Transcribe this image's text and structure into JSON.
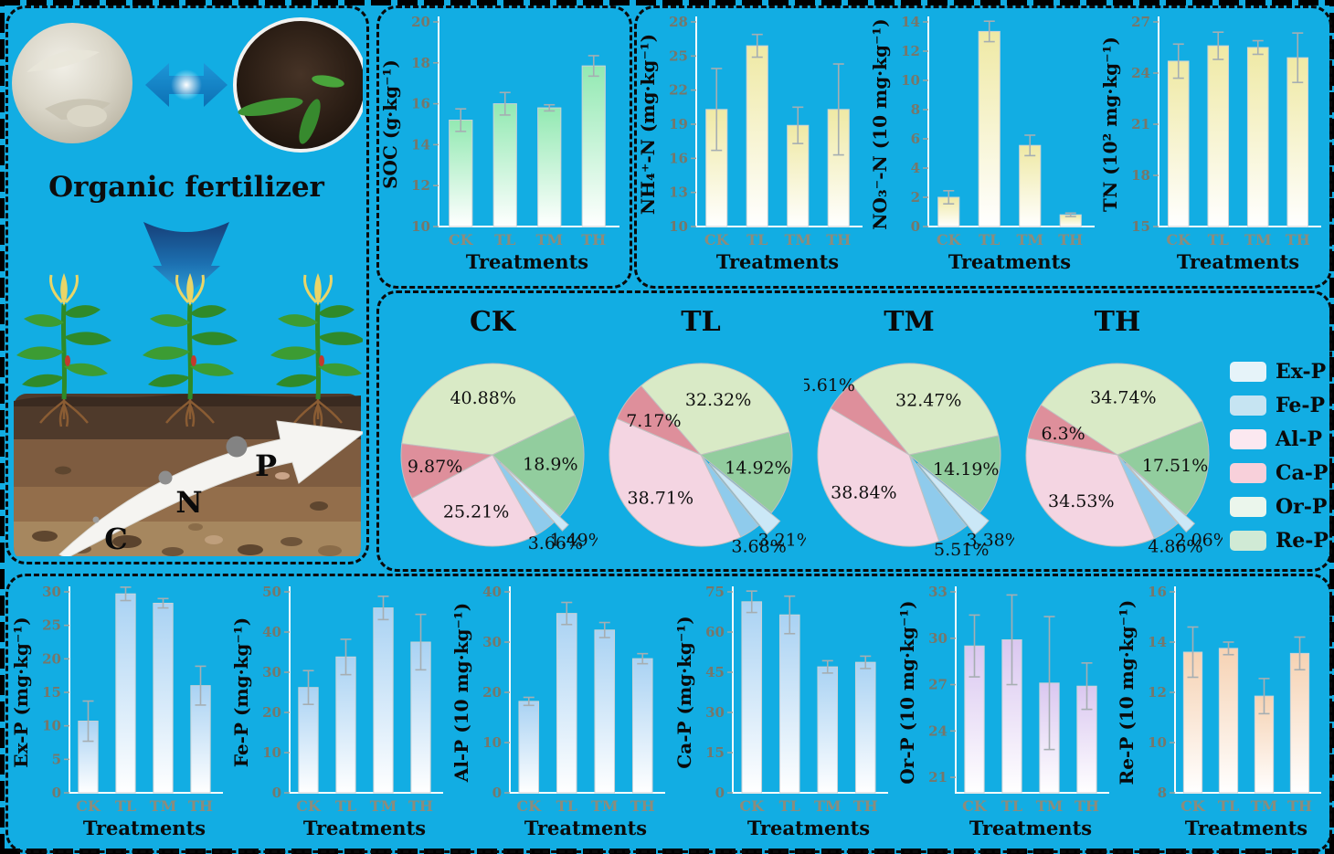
{
  "page": {
    "background": "#12ADE3",
    "border_color": "#000000"
  },
  "illustration": {
    "title": "Organic fertilizer",
    "photo_left": "fertilizer-powder-photo",
    "photo_right": "dark-soil-with-seedlings-photo",
    "nutrient_labels": [
      "C",
      "N",
      "P"
    ]
  },
  "treatments": [
    "CK",
    "TL",
    "TM",
    "TH"
  ],
  "pie_legend": [
    {
      "label": "Ex-P",
      "color": "#E6F3F9"
    },
    {
      "label": "Fe-P",
      "color": "#C6E4F2"
    },
    {
      "label": "Al-P",
      "color": "#FBE8F0"
    },
    {
      "label": "Ca-P",
      "color": "#F8D0DA"
    },
    {
      "label": "Or-P",
      "color": "#EBF6EC"
    },
    {
      "label": "Re-P",
      "color": "#D0EAD5"
    }
  ],
  "chart_data": [
    {
      "type": "bar",
      "name": "soc",
      "ylabel": "SOC (g·kg⁻¹)",
      "xlabel": "Treatments",
      "categories": [
        "CK",
        "TL",
        "TM",
        "TH"
      ],
      "values": [
        15.2,
        16.0,
        15.8,
        17.85
      ],
      "errors": [
        0.55,
        0.55,
        0.15,
        0.5
      ],
      "ylim": [
        10,
        20
      ],
      "yticks": [
        10,
        12,
        14,
        16,
        18,
        20
      ],
      "bar_top_color": "#92E9B2"
    },
    {
      "type": "bar",
      "name": "nh4",
      "ylabel": "NH₄⁺-N (mg·kg⁻¹)",
      "xlabel": "Treatments",
      "categories": [
        "CK",
        "TL",
        "TM",
        "TH"
      ],
      "values": [
        20.3,
        25.9,
        18.9,
        20.3
      ],
      "errors": [
        3.6,
        1.0,
        1.6,
        4.0
      ],
      "ylim": [
        10,
        28
      ],
      "yticks": [
        10,
        13,
        16,
        19,
        22,
        25,
        28
      ],
      "bar_top_color": "#EFE9A4"
    },
    {
      "type": "bar",
      "name": "no3",
      "ylabel": "NO₃⁻-N (10 mg·kg⁻¹)",
      "xlabel": "Treatments",
      "categories": [
        "CK",
        "TL",
        "TM",
        "TH"
      ],
      "values": [
        2.0,
        13.35,
        5.55,
        0.8
      ],
      "errors": [
        0.45,
        0.7,
        0.7,
        0.12
      ],
      "ylim": [
        0,
        14
      ],
      "yticks": [
        0,
        2,
        4,
        6,
        8,
        10,
        12,
        14
      ],
      "bar_top_color": "#EFE9A4"
    },
    {
      "type": "bar",
      "name": "tn",
      "ylabel": "TN (10² mg·kg⁻¹)",
      "xlabel": "Treatments",
      "categories": [
        "CK",
        "TL",
        "TM",
        "TH"
      ],
      "values": [
        24.7,
        25.6,
        25.5,
        24.9
      ],
      "errors": [
        1.0,
        0.8,
        0.4,
        1.45
      ],
      "ylim": [
        15,
        27
      ],
      "yticks": [
        15,
        18,
        21,
        24,
        27
      ],
      "bar_top_color": "#EFE9A4"
    },
    {
      "type": "bar",
      "name": "exp",
      "ylabel": "Ex-P (mg·kg⁻¹)",
      "xlabel": "Treatments",
      "categories": [
        "CK",
        "TL",
        "TM",
        "TH"
      ],
      "values": [
        10.7,
        29.7,
        28.3,
        16.0
      ],
      "errors": [
        3.0,
        1.0,
        0.7,
        2.9
      ],
      "ylim": [
        0,
        30
      ],
      "yticks": [
        0,
        5,
        10,
        15,
        20,
        25,
        30
      ],
      "bar_top_color": "#A9D2F3"
    },
    {
      "type": "bar",
      "name": "fep",
      "ylabel": "Fe-P (mg·kg⁻¹)",
      "xlabel": "Treatments",
      "categories": [
        "CK",
        "TL",
        "TM",
        "TH"
      ],
      "values": [
        26.2,
        33.8,
        46.0,
        37.5
      ],
      "errors": [
        4.2,
        4.4,
        2.9,
        6.9
      ],
      "ylim": [
        0,
        50
      ],
      "yticks": [
        0,
        10,
        20,
        30,
        40,
        50
      ],
      "bar_top_color": "#A9D2F3"
    },
    {
      "type": "bar",
      "name": "alp",
      "ylabel": "Al-P (10 mg·kg⁻¹)",
      "xlabel": "Treatments",
      "categories": [
        "CK",
        "TL",
        "TM",
        "TH"
      ],
      "values": [
        18.2,
        35.7,
        32.4,
        26.7
      ],
      "errors": [
        0.8,
        2.2,
        1.5,
        1.0
      ],
      "ylim": [
        0,
        40
      ],
      "yticks": [
        0,
        10,
        20,
        30,
        40
      ],
      "bar_top_color": "#A9D2F3"
    },
    {
      "type": "bar",
      "name": "cap",
      "ylabel": "Ca-P (mg·kg⁻¹)",
      "xlabel": "Treatments",
      "categories": [
        "CK",
        "TL",
        "TM",
        "TH"
      ],
      "values": [
        71.3,
        66.4,
        47.0,
        48.7
      ],
      "errors": [
        4.0,
        7.0,
        2.3,
        2.3
      ],
      "ylim": [
        0,
        75
      ],
      "yticks": [
        0,
        15,
        30,
        45,
        60,
        75
      ],
      "bar_top_color": "#A9D2F3"
    },
    {
      "type": "bar",
      "name": "orp",
      "ylabel": "Or-P (10 mg·kg⁻¹)",
      "xlabel": "Treatments",
      "categories": [
        "CK",
        "TL",
        "TM",
        "TH"
      ],
      "values": [
        29.5,
        29.9,
        27.1,
        26.9
      ],
      "errors": [
        2.0,
        2.9,
        4.3,
        1.5
      ],
      "ylim": [
        20,
        33
      ],
      "yticks": [
        21,
        24,
        27,
        30,
        33
      ],
      "bar_top_color": "#DAC7F0"
    },
    {
      "type": "bar",
      "name": "rep",
      "ylabel": "Re-P (10 mg·kg⁻¹)",
      "xlabel": "Treatments",
      "categories": [
        "CK",
        "TL",
        "TM",
        "TH"
      ],
      "values": [
        13.6,
        13.75,
        11.85,
        13.55
      ],
      "errors": [
        1.0,
        0.25,
        0.7,
        0.65
      ],
      "ylim": [
        8,
        16
      ],
      "yticks": [
        8,
        10,
        12,
        14,
        16
      ],
      "bar_top_color": "#F6D2B3"
    },
    {
      "type": "pie",
      "name": "ck",
      "title": "CK",
      "explode_center_deg": 135,
      "slices": [
        {
          "name": "Ex-P",
          "value": 1.49,
          "label": "1.49%",
          "color": "#CBE8F7",
          "explode": true
        },
        {
          "name": "Fe-P",
          "value": 3.66,
          "label": "3.66%",
          "color": "#8FCBEC"
        },
        {
          "name": "Al-P",
          "value": 25.21,
          "label": "25.21%",
          "color": "#F4D5E2"
        },
        {
          "name": "Ca-P",
          "value": 9.87,
          "label": "9.87%",
          "color": "#DE8F9B"
        },
        {
          "name": "Or-P",
          "value": 40.88,
          "label": "40.88%",
          "color": "#D9EAC6"
        },
        {
          "name": "Re-P",
          "value": 18.9,
          "label": "18.9%",
          "color": "#92CD9E"
        }
      ]
    },
    {
      "type": "pie",
      "name": "tl",
      "title": "TL",
      "explode_center_deg": 135,
      "slices": [
        {
          "name": "Ex-P",
          "value": 3.21,
          "label": "3.21%",
          "color": "#CBE8F7",
          "explode": true
        },
        {
          "name": "Fe-P",
          "value": 3.68,
          "label": "3.68%",
          "color": "#8FCBEC"
        },
        {
          "name": "Al-P",
          "value": 38.71,
          "label": "38.71%",
          "color": "#F4D5E2"
        },
        {
          "name": "Ca-P",
          "value": 7.17,
          "label": "7.17%",
          "color": "#DE8F9B"
        },
        {
          "name": "Or-P",
          "value": 32.32,
          "label": "32.32%",
          "color": "#D9EAC6"
        },
        {
          "name": "Re-P",
          "value": 14.92,
          "label": "14.92%",
          "color": "#92CD9E"
        }
      ]
    },
    {
      "type": "pie",
      "name": "tm",
      "title": "TM",
      "explode_center_deg": 135,
      "slices": [
        {
          "name": "Ex-P",
          "value": 3.38,
          "label": "3.38%",
          "color": "#CBE8F7",
          "explode": true
        },
        {
          "name": "Fe-P",
          "value": 5.51,
          "label": "5.51%",
          "color": "#8FCBEC"
        },
        {
          "name": "Al-P",
          "value": 38.84,
          "label": "38.84%",
          "color": "#F4D5E2"
        },
        {
          "name": "Ca-P",
          "value": 5.61,
          "label": "5.61%",
          "color": "#DE8F9B"
        },
        {
          "name": "Or-P",
          "value": 32.47,
          "label": "32.47%",
          "color": "#D9EAC6"
        },
        {
          "name": "Re-P",
          "value": 14.19,
          "label": "14.19%",
          "color": "#92CD9E"
        }
      ]
    },
    {
      "type": "pie",
      "name": "th",
      "title": "TH",
      "explode_center_deg": 135,
      "slices": [
        {
          "name": "Ex-P",
          "value": 2.06,
          "label": "2.06%",
          "color": "#CBE8F7",
          "explode": true
        },
        {
          "name": "Fe-P",
          "value": 4.86,
          "label": "4.86%",
          "color": "#8FCBEC"
        },
        {
          "name": "Al-P",
          "value": 34.53,
          "label": "34.53%",
          "color": "#F4D5E2"
        },
        {
          "name": "Ca-P",
          "value": 6.3,
          "label": "6.3%",
          "color": "#DE8F9B"
        },
        {
          "name": "Or-P",
          "value": 34.74,
          "label": "34.74%",
          "color": "#D9EAC6"
        },
        {
          "name": "Re-P",
          "value": 17.51,
          "label": "17.51%",
          "color": "#92CD9E"
        }
      ]
    }
  ]
}
